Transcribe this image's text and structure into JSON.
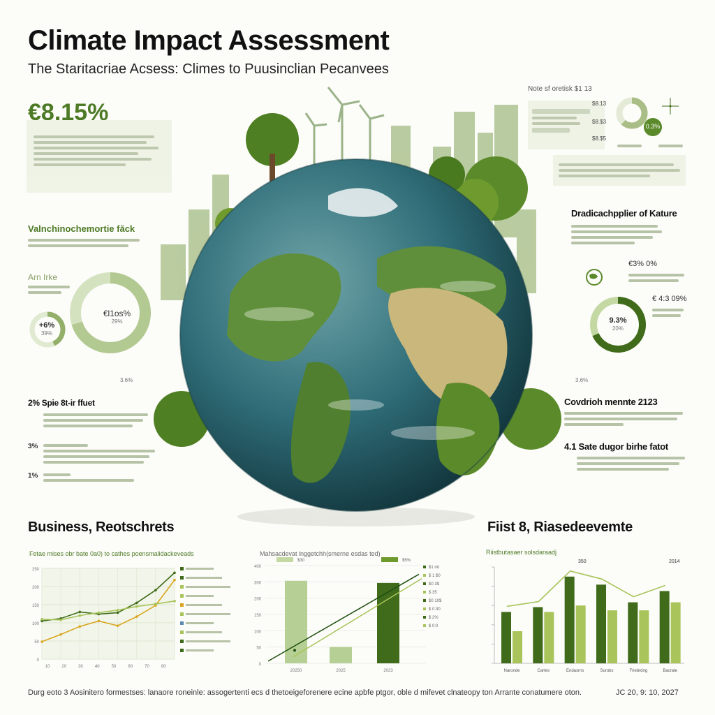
{
  "header": {
    "title": "Climate Impact Assessment",
    "subtitle": "The Staritacriae Acsess: Climes to Puusinclian Pecanvees"
  },
  "left_panel": {
    "big_stat": "€8.15%",
    "section1_title": "Valnchinochemortie făck",
    "section2_title": "Arn Irke",
    "donut_large_label": "€l1os%",
    "donut_large_sub": "29%",
    "donut_small_label": "+6%",
    "donut_small_sub": "39%",
    "section3_title": "2% Spie 8t-ir ffuet",
    "row_a": "3%",
    "row_b": "1%",
    "side_value": "3.6%"
  },
  "right_panel": {
    "header_note": "Note sf oretisk $1 13",
    "mini_values": [
      "$8.13",
      "$8.$3",
      "$8.$5"
    ],
    "donut_top_label": "0.3%",
    "section1_title": "Dradicachpplier of Kature",
    "stat_a": "€3% 0%",
    "stat_b": "€ 4:3 09%",
    "donut_label": "9.3%",
    "donut_sub": "20%",
    "side_value": "3.6%",
    "section2_title": "Covdrioh mennte  2123",
    "section3_title": "4.1 Sate dugor birhe fatot"
  },
  "colors": {
    "dark_green": "#3f6b1a",
    "mid_green": "#6f9a2e",
    "light_green": "#a8c45a",
    "pale_green": "#c4d8a4",
    "gold": "#d9a520",
    "ocean": "#2f6d78"
  },
  "sections": {
    "bottom_left_title": "Business, Reotschrets",
    "bottom_right_title": "Fiist 8, Riasedeevemte"
  },
  "chart_data": [
    {
      "type": "line",
      "title": "Fetae mises obr bate 0a0) to cathes poensmalidackeveads",
      "x": [
        "1",
        "2",
        "3",
        "4",
        "5",
        "6",
        "7",
        "8"
      ],
      "ylim": [
        0,
        250
      ],
      "yticks": [
        "0",
        "50",
        "100",
        "150",
        "200",
        "250"
      ],
      "xticks": [
        "10",
        "20",
        "30",
        "40",
        "50",
        "60",
        "70",
        "80"
      ],
      "series": [
        {
          "color": "#3f6b1a",
          "values": [
            105,
            112,
            130,
            124,
            128,
            155,
            190,
            238
          ]
        },
        {
          "color": "#d9a520",
          "values": [
            48,
            68,
            90,
            105,
            92,
            117,
            148,
            218
          ]
        },
        {
          "color": "#a8c45a",
          "values": [
            110,
            108,
            120,
            128,
            135,
            145,
            152,
            160
          ]
        }
      ],
      "legend": [
        "Legend item",
        "Legend item",
        "Legend item",
        "Legend item",
        "Legend item",
        "Legend item",
        "Legend item",
        "Legend item",
        "Legend item",
        "Legend item"
      ],
      "grid": true
    },
    {
      "type": "bar",
      "title": "Mahsacdevat lnggetchh(smerne esdas ted)",
      "legend": [
        "$30",
        "$5%"
      ],
      "categories": [
        "20250",
        "2025",
        "2023"
      ],
      "values": [
        380,
        75,
        370
      ],
      "line_values": [
        10,
        410
      ],
      "ylim": [
        0,
        450
      ],
      "yticks": [
        "0",
        "50",
        "100",
        "150",
        "200",
        "300",
        "400"
      ],
      "bar_colors": [
        "#b6cf94",
        "#b6cf94",
        "#3f6b1a"
      ],
      "side_notes": [
        "$1 mt",
        "$ 1 $0",
        "$0 3$",
        "$ 35",
        "$0 10$",
        "$ 0:30",
        "$ 2%",
        "$ 0:0"
      ],
      "grid": true
    },
    {
      "type": "bar",
      "title": "Riistbutasaer solsdaraadj",
      "categories": [
        "Naronde",
        "Cartes",
        "Endasrns",
        "Surobs",
        "Friebrdng",
        "Bacrate"
      ],
      "series": [
        {
          "color": "#3f6b1a",
          "values": [
            160,
            175,
            270,
            245,
            190,
            225
          ]
        },
        {
          "color": "#a8c45a",
          "values": [
            100,
            160,
            180,
            165,
            165,
            190
          ]
        }
      ],
      "ylim": [
        0,
        300
      ],
      "top_labels": [
        "350",
        "2014"
      ],
      "grid": false
    }
  ],
  "footer": {
    "text": "Durg eoto 3 Aosinitero formestses: lanaore roneinle: assogertenti ecs d thetoeigeforenere ecine apbfe ptgor, oble d mifevet clnateopy ton Arrante conatumere oton.",
    "date": "JC 20, 9: 10, 2027"
  }
}
